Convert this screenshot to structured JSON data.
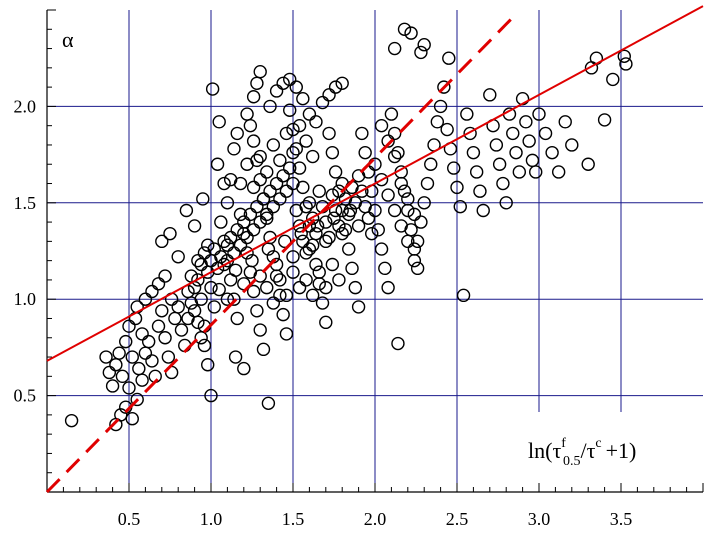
{
  "chart_data": {
    "type": "scatter",
    "ylabel": "α",
    "xlabel": {
      "prefix": "ln(τ",
      "sup1": "f",
      "sub1": "0.5",
      "mid": "/τ",
      "sup2": "c",
      "suffix": "+1)"
    },
    "xlim": [
      0.0,
      4.0
    ],
    "ylim": [
      0.0,
      2.5
    ],
    "x_ticks": [
      0.5,
      1.0,
      1.5,
      2.0,
      2.5,
      3.0,
      3.5
    ],
    "x_tick_labels": [
      "0.5",
      "1.0",
      "1.5",
      "2.0",
      "2.5",
      "3.0",
      "3.5"
    ],
    "y_ticks": [
      0.5,
      1.0,
      1.5,
      2.0
    ],
    "y_tick_labels": [
      "0.5",
      "1.0",
      "1.5",
      "2.0"
    ],
    "grid": true,
    "colors": {
      "grid": "#1a1a8c",
      "fit_line": "#e00000",
      "points": "#000000"
    },
    "fit_solid": {
      "style": "solid",
      "x": [
        0.0,
        4.0
      ],
      "y": [
        0.68,
        2.52
      ]
    },
    "fit_dashed": {
      "style": "dashed",
      "x": [
        0.0,
        2.85
      ],
      "y": [
        0.0,
        2.47
      ]
    },
    "points": [
      [
        0.15,
        0.37
      ],
      [
        0.42,
        0.35
      ],
      [
        0.45,
        0.4
      ],
      [
        0.48,
        0.44
      ],
      [
        0.52,
        0.38
      ],
      [
        0.55,
        0.48
      ],
      [
        0.4,
        0.55
      ],
      [
        0.38,
        0.62
      ],
      [
        0.36,
        0.7
      ],
      [
        0.42,
        0.66
      ],
      [
        0.46,
        0.6
      ],
      [
        0.5,
        0.54
      ],
      [
        0.44,
        0.72
      ],
      [
        0.48,
        0.78
      ],
      [
        0.52,
        0.7
      ],
      [
        0.56,
        0.64
      ],
      [
        0.58,
        0.58
      ],
      [
        0.6,
        0.72
      ],
      [
        0.5,
        0.86
      ],
      [
        0.54,
        0.9
      ],
      [
        0.58,
        0.82
      ],
      [
        0.62,
        0.78
      ],
      [
        0.64,
        0.68
      ],
      [
        0.66,
        0.6
      ],
      [
        0.68,
        0.86
      ],
      [
        0.7,
        0.94
      ],
      [
        0.72,
        0.8
      ],
      [
        0.74,
        0.7
      ],
      [
        0.76,
        0.62
      ],
      [
        0.78,
        0.9
      ],
      [
        0.55,
        0.96
      ],
      [
        0.6,
        1.0
      ],
      [
        0.64,
        1.04
      ],
      [
        0.68,
        1.08
      ],
      [
        0.72,
        1.12
      ],
      [
        0.76,
        1.0
      ],
      [
        0.8,
        0.96
      ],
      [
        0.82,
        0.84
      ],
      [
        0.84,
        0.76
      ],
      [
        0.86,
        1.04
      ],
      [
        0.88,
        1.12
      ],
      [
        0.9,
        0.94
      ],
      [
        0.92,
        1.2
      ],
      [
        0.94,
        1.0
      ],
      [
        0.96,
        0.86
      ],
      [
        0.98,
        1.28
      ],
      [
        1.0,
        1.06
      ],
      [
        1.02,
        0.96
      ],
      [
        0.7,
        1.3
      ],
      [
        0.75,
        1.34
      ],
      [
        0.8,
        1.22
      ],
      [
        0.85,
        1.46
      ],
      [
        0.9,
        1.38
      ],
      [
        0.95,
        1.52
      ],
      [
        0.98,
        0.66
      ],
      [
        1.0,
        0.5
      ],
      [
        1.01,
        2.09
      ],
      [
        1.05,
        1.92
      ],
      [
        1.08,
        1.6
      ],
      [
        1.04,
        1.7
      ],
      [
        1.06,
        1.4
      ],
      [
        1.08,
        1.3
      ],
      [
        1.1,
        1.2
      ],
      [
        1.12,
        1.1
      ],
      [
        1.14,
        1.0
      ],
      [
        1.16,
        0.9
      ],
      [
        1.1,
        1.5
      ],
      [
        1.12,
        1.62
      ],
      [
        1.14,
        1.78
      ],
      [
        1.16,
        1.86
      ],
      [
        1.18,
        1.44
      ],
      [
        1.2,
        1.34
      ],
      [
        1.22,
        1.24
      ],
      [
        1.24,
        1.14
      ],
      [
        1.26,
        1.04
      ],
      [
        1.28,
        0.94
      ],
      [
        1.3,
        0.84
      ],
      [
        1.32,
        0.74
      ],
      [
        1.15,
        0.7
      ],
      [
        1.2,
        0.64
      ],
      [
        1.35,
        0.46
      ],
      [
        1.26,
        2.05
      ],
      [
        1.28,
        2.12
      ],
      [
        1.3,
        2.18
      ],
      [
        1.22,
        1.96
      ],
      [
        1.24,
        1.9
      ],
      [
        1.26,
        1.82
      ],
      [
        1.28,
        1.72
      ],
      [
        1.3,
        1.62
      ],
      [
        1.32,
        1.52
      ],
      [
        1.34,
        1.42
      ],
      [
        1.36,
        1.32
      ],
      [
        1.38,
        1.22
      ],
      [
        1.4,
        1.12
      ],
      [
        1.42,
        1.02
      ],
      [
        1.44,
        0.92
      ],
      [
        1.46,
        0.82
      ],
      [
        1.48,
        1.98
      ],
      [
        1.5,
        1.88
      ],
      [
        1.52,
        1.78
      ],
      [
        1.54,
        1.68
      ],
      [
        1.56,
        1.58
      ],
      [
        1.58,
        1.48
      ],
      [
        1.6,
        1.38
      ],
      [
        1.62,
        1.28
      ],
      [
        1.64,
        1.18
      ],
      [
        1.66,
        1.08
      ],
      [
        1.68,
        0.98
      ],
      [
        1.7,
        0.88
      ],
      [
        1.36,
        2.0
      ],
      [
        1.4,
        2.08
      ],
      [
        1.44,
        2.12
      ],
      [
        1.48,
        2.14
      ],
      [
        1.52,
        2.1
      ],
      [
        1.56,
        2.04
      ],
      [
        1.6,
        1.96
      ],
      [
        1.64,
        1.92
      ],
      [
        1.68,
        2.02
      ],
      [
        1.72,
        2.06
      ],
      [
        1.76,
        2.1
      ],
      [
        1.8,
        2.12
      ],
      [
        1.72,
        1.86
      ],
      [
        1.74,
        1.76
      ],
      [
        1.76,
        1.66
      ],
      [
        1.78,
        1.56
      ],
      [
        1.8,
        1.46
      ],
      [
        1.82,
        1.36
      ],
      [
        1.84,
        1.26
      ],
      [
        1.86,
        1.16
      ],
      [
        1.88,
        1.06
      ],
      [
        1.9,
        0.96
      ],
      [
        1.92,
        1.86
      ],
      [
        1.94,
        1.76
      ],
      [
        1.96,
        1.66
      ],
      [
        1.98,
        1.56
      ],
      [
        2.0,
        1.46
      ],
      [
        2.02,
        1.36
      ],
      [
        2.04,
        1.26
      ],
      [
        2.06,
        1.16
      ],
      [
        2.08,
        1.06
      ],
      [
        2.1,
        1.96
      ],
      [
        2.12,
        1.86
      ],
      [
        2.14,
        1.76
      ],
      [
        2.16,
        1.66
      ],
      [
        2.18,
        1.56
      ],
      [
        2.2,
        1.46
      ],
      [
        2.22,
        1.36
      ],
      [
        2.24,
        1.26
      ],
      [
        2.26,
        1.16
      ],
      [
        2.14,
        0.77
      ],
      [
        2.12,
        2.3
      ],
      [
        2.18,
        2.4
      ],
      [
        2.22,
        2.38
      ],
      [
        2.28,
        2.28
      ],
      [
        2.3,
        2.32
      ],
      [
        2.45,
        2.25
      ],
      [
        2.42,
        2.1
      ],
      [
        2.4,
        2.0
      ],
      [
        2.38,
        1.92
      ],
      [
        2.36,
        1.8
      ],
      [
        2.34,
        1.7
      ],
      [
        2.32,
        1.6
      ],
      [
        2.3,
        1.5
      ],
      [
        2.28,
        1.4
      ],
      [
        2.26,
        1.3
      ],
      [
        2.24,
        1.2
      ],
      [
        2.44,
        1.88
      ],
      [
        2.46,
        1.78
      ],
      [
        2.48,
        1.68
      ],
      [
        2.5,
        1.58
      ],
      [
        2.52,
        1.48
      ],
      [
        2.54,
        1.02
      ],
      [
        2.56,
        1.96
      ],
      [
        2.58,
        1.86
      ],
      [
        2.6,
        1.76
      ],
      [
        2.62,
        1.66
      ],
      [
        2.64,
        1.56
      ],
      [
        2.66,
        1.46
      ],
      [
        2.7,
        2.06
      ],
      [
        2.72,
        1.9
      ],
      [
        2.74,
        1.8
      ],
      [
        2.76,
        1.7
      ],
      [
        2.78,
        1.6
      ],
      [
        2.8,
        1.5
      ],
      [
        2.82,
        1.96
      ],
      [
        2.84,
        1.86
      ],
      [
        2.86,
        1.76
      ],
      [
        2.88,
        1.66
      ],
      [
        2.9,
        2.04
      ],
      [
        2.92,
        1.92
      ],
      [
        2.94,
        1.82
      ],
      [
        2.96,
        1.72
      ],
      [
        2.98,
        1.66
      ],
      [
        3.0,
        1.96
      ],
      [
        3.04,
        1.86
      ],
      [
        3.08,
        1.76
      ],
      [
        3.12,
        1.66
      ],
      [
        3.16,
        1.92
      ],
      [
        3.2,
        1.8
      ],
      [
        3.3,
        1.7
      ],
      [
        3.32,
        2.2
      ],
      [
        3.35,
        2.25
      ],
      [
        3.4,
        1.93
      ],
      [
        3.45,
        2.14
      ],
      [
        3.52,
        2.26
      ],
      [
        3.53,
        2.22
      ],
      [
        0.92,
        1.1
      ],
      [
        0.94,
        1.18
      ],
      [
        0.96,
        1.24
      ],
      [
        0.98,
        1.14
      ],
      [
        1.0,
        1.2
      ],
      [
        1.02,
        1.26
      ],
      [
        1.04,
        1.16
      ],
      [
        1.06,
        1.22
      ],
      [
        1.08,
        1.18
      ],
      [
        1.1,
        1.28
      ],
      [
        1.12,
        1.32
      ],
      [
        1.14,
        1.24
      ],
      [
        1.16,
        1.36
      ],
      [
        1.18,
        1.28
      ],
      [
        1.2,
        1.4
      ],
      [
        1.22,
        1.32
      ],
      [
        1.24,
        1.44
      ],
      [
        1.26,
        1.36
      ],
      [
        1.28,
        1.48
      ],
      [
        1.3,
        1.4
      ],
      [
        1.32,
        1.52
      ],
      [
        1.34,
        1.44
      ],
      [
        1.36,
        1.56
      ],
      [
        1.38,
        1.48
      ],
      [
        1.4,
        1.6
      ],
      [
        1.42,
        1.52
      ],
      [
        1.44,
        1.64
      ],
      [
        1.46,
        1.56
      ],
      [
        1.48,
        1.68
      ],
      [
        1.5,
        1.6
      ],
      [
        1.52,
        1.46
      ],
      [
        1.54,
        1.38
      ],
      [
        1.56,
        1.3
      ],
      [
        1.58,
        1.24
      ],
      [
        1.6,
        1.5
      ],
      [
        1.62,
        1.42
      ],
      [
        1.64,
        1.34
      ],
      [
        1.66,
        1.56
      ],
      [
        1.68,
        1.48
      ],
      [
        1.7,
        1.4
      ],
      [
        1.72,
        1.32
      ],
      [
        1.74,
        1.54
      ],
      [
        1.76,
        1.46
      ],
      [
        1.78,
        1.38
      ],
      [
        1.8,
        1.6
      ],
      [
        1.82,
        1.52
      ],
      [
        1.84,
        1.44
      ],
      [
        1.86,
        1.58
      ],
      [
        1.88,
        1.5
      ],
      [
        1.9,
        1.64
      ],
      [
        1.92,
        1.56
      ],
      [
        1.94,
        1.48
      ],
      [
        1.96,
        1.42
      ],
      [
        1.98,
        1.34
      ],
      [
        1.05,
        1.05
      ],
      [
        1.1,
        1.0
      ],
      [
        1.15,
        1.15
      ],
      [
        1.2,
        1.08
      ],
      [
        1.25,
        1.2
      ],
      [
        1.3,
        1.12
      ],
      [
        1.35,
        1.26
      ],
      [
        1.4,
        1.18
      ],
      [
        1.45,
        1.3
      ],
      [
        1.5,
        1.22
      ],
      [
        1.55,
        1.34
      ],
      [
        1.6,
        1.26
      ],
      [
        1.65,
        1.38
      ],
      [
        1.7,
        1.3
      ],
      [
        1.75,
        1.42
      ],
      [
        1.8,
        1.34
      ],
      [
        1.85,
        1.46
      ],
      [
        1.9,
        1.38
      ],
      [
        0.86,
        0.9
      ],
      [
        0.88,
        0.98
      ],
      [
        0.9,
        1.06
      ],
      [
        0.92,
        0.88
      ],
      [
        0.94,
        0.8
      ],
      [
        0.96,
        0.76
      ],
      [
        1.18,
        1.6
      ],
      [
        1.22,
        1.7
      ],
      [
        1.26,
        1.58
      ],
      [
        1.3,
        1.74
      ],
      [
        1.34,
        1.66
      ],
      [
        1.38,
        1.8
      ],
      [
        1.42,
        1.72
      ],
      [
        1.46,
        1.86
      ],
      [
        1.5,
        1.76
      ],
      [
        1.54,
        1.9
      ],
      [
        1.58,
        1.82
      ],
      [
        1.62,
        1.74
      ],
      [
        1.34,
        1.06
      ],
      [
        1.38,
        0.98
      ],
      [
        1.42,
        1.1
      ],
      [
        1.46,
        1.02
      ],
      [
        1.5,
        1.14
      ],
      [
        1.54,
        1.06
      ],
      [
        1.58,
        1.1
      ],
      [
        1.62,
        1.02
      ],
      [
        1.66,
        1.14
      ],
      [
        1.7,
        1.06
      ],
      [
        1.74,
        1.18
      ],
      [
        1.78,
        1.1
      ],
      [
        2.0,
        1.7
      ],
      [
        2.04,
        1.62
      ],
      [
        2.08,
        1.54
      ],
      [
        2.12,
        1.46
      ],
      [
        2.16,
        1.38
      ],
      [
        2.2,
        1.3
      ],
      [
        2.04,
        1.9
      ],
      [
        2.08,
        1.82
      ],
      [
        2.12,
        1.74
      ],
      [
        2.16,
        1.6
      ],
      [
        2.2,
        1.52
      ],
      [
        2.24,
        1.44
      ]
    ]
  }
}
